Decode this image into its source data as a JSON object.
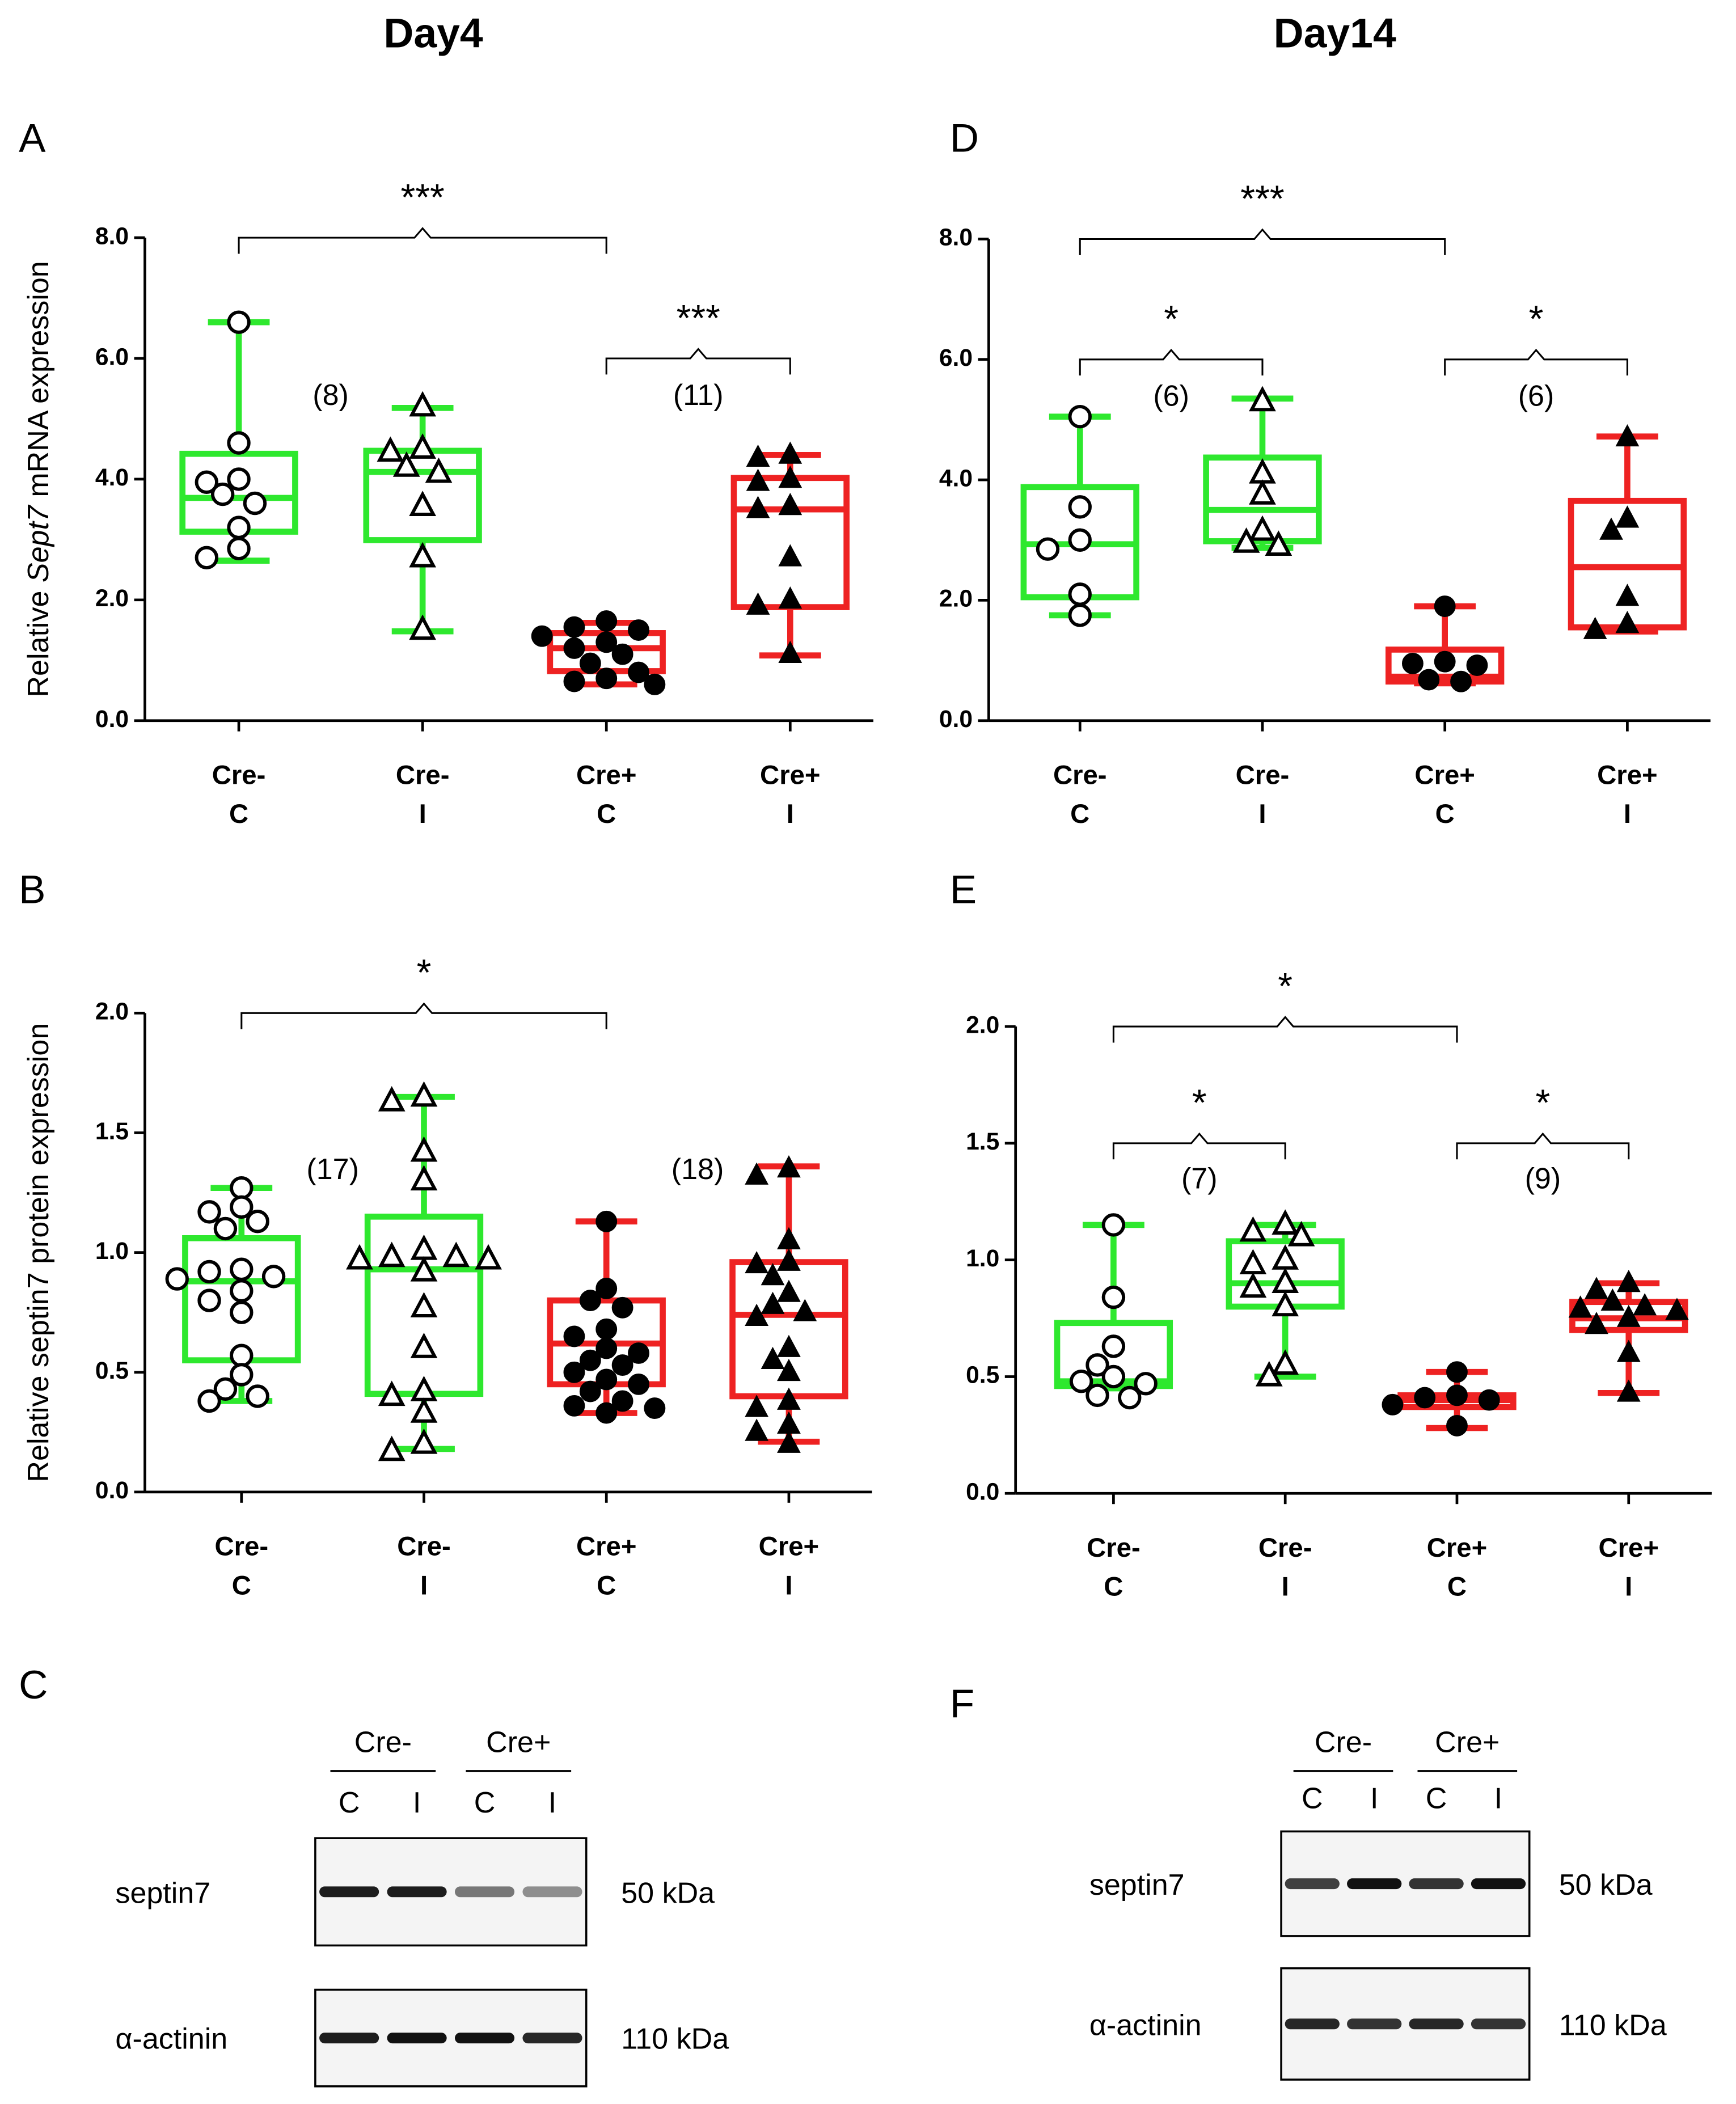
{
  "columns": [
    "Day4",
    "Day14"
  ],
  "chart_data": [
    {
      "type": "box",
      "panel": "A",
      "ylabel": [
        "Relative ",
        "Sept7",
        " mRNA expression"
      ],
      "categories": [
        [
          "Cre-",
          "C"
        ],
        [
          "Cre-",
          "I"
        ],
        [
          "Cre+",
          "C"
        ],
        [
          "Cre+",
          "I"
        ]
      ],
      "ylim": [
        0,
        8
      ],
      "yticks": [
        {
          "value": 0,
          "label": "0.0"
        },
        {
          "value": 2,
          "label": "2.0"
        },
        {
          "value": 4,
          "label": "4.0"
        },
        {
          "value": 6,
          "label": "6.0"
        },
        {
          "value": 8,
          "label": "8.0"
        }
      ],
      "boxes": [
        {
          "color": "#2ee82e",
          "marker": "circle-open",
          "min": 2.65,
          "q1": 3.13,
          "median": 3.69,
          "q3": 4.42,
          "max": 6.6,
          "points": [
            6.6,
            4.6,
            4.0,
            3.95,
            3.75,
            3.6,
            3.2,
            2.85,
            2.7
          ]
        },
        {
          "color": "#2ee82e",
          "marker": "triangle-open",
          "min": 1.48,
          "q1": 2.99,
          "median": 4.12,
          "q3": 4.47,
          "max": 5.18,
          "points": [
            5.2,
            4.5,
            4.45,
            4.2,
            4.1,
            3.55,
            2.7,
            1.5
          ]
        },
        {
          "color": "#ee2222",
          "marker": "circle",
          "min": 0.6,
          "q1": 0.82,
          "median": 1.2,
          "q3": 1.45,
          "max": 1.62,
          "points": [
            1.65,
            1.55,
            1.5,
            1.4,
            1.3,
            1.2,
            1.1,
            0.95,
            0.8,
            0.7,
            0.65,
            0.6
          ]
        },
        {
          "color": "#ee2222",
          "marker": "triangle",
          "min": 1.08,
          "q1": 1.88,
          "median": 3.5,
          "q3": 4.02,
          "max": 4.4,
          "points": [
            4.4,
            4.35,
            4.0,
            3.95,
            3.55,
            3.5,
            2.7,
            2.0,
            1.9,
            1.1
          ]
        }
      ],
      "brackets": [
        {
          "from": 0,
          "to": 2,
          "label": "***"
        },
        {
          "from": 2,
          "to": 3,
          "label": "***"
        }
      ],
      "n_labels": [
        {
          "from": 0,
          "to": 1,
          "label": "(8)"
        },
        {
          "from": 2,
          "to": 3,
          "label": "(11)"
        }
      ]
    },
    {
      "type": "box",
      "panel": "D",
      "categories": [
        [
          "Cre-",
          "C"
        ],
        [
          "Cre-",
          "I"
        ],
        [
          "Cre+",
          "C"
        ],
        [
          "Cre+",
          "I"
        ]
      ],
      "ylim": [
        0,
        8
      ],
      "yticks": [
        {
          "value": 0,
          "label": "0.0"
        },
        {
          "value": 2,
          "label": "2.0"
        },
        {
          "value": 4,
          "label": "4.0"
        },
        {
          "value": 6,
          "label": "6.0"
        },
        {
          "value": 8,
          "label": "8.0"
        }
      ],
      "boxes": [
        {
          "color": "#2ee82e",
          "marker": "circle-open",
          "min": 1.75,
          "q1": 2.05,
          "median": 2.93,
          "q3": 3.88,
          "max": 5.05,
          "points": [
            5.05,
            3.55,
            3.0,
            2.85,
            2.1,
            1.75
          ]
        },
        {
          "color": "#2ee82e",
          "marker": "triangle-open",
          "min": 2.87,
          "q1": 2.98,
          "median": 3.5,
          "q3": 4.37,
          "max": 5.35,
          "points": [
            5.3,
            4.1,
            3.75,
            3.15,
            2.95,
            2.9
          ]
        },
        {
          "color": "#ee2222",
          "marker": "circle",
          "min": 0.62,
          "q1": 0.65,
          "median": 0.73,
          "q3": 1.18,
          "max": 1.9,
          "points": [
            1.9,
            0.98,
            0.95,
            0.92,
            0.68,
            0.65
          ]
        },
        {
          "color": "#ee2222",
          "marker": "triangle",
          "min": 1.48,
          "q1": 1.55,
          "median": 2.55,
          "q3": 3.65,
          "max": 4.72,
          "points": [
            4.7,
            3.35,
            3.15,
            2.05,
            1.6,
            1.5
          ]
        }
      ],
      "brackets": [
        {
          "from": 0,
          "to": 2,
          "label": "***"
        },
        {
          "from": 0,
          "to": 1,
          "label": "*"
        },
        {
          "from": 2,
          "to": 3,
          "label": "*"
        }
      ],
      "n_labels": [
        {
          "from": 0,
          "to": 1,
          "label": "(6)"
        },
        {
          "from": 2,
          "to": 3,
          "label": "(6)"
        }
      ]
    },
    {
      "type": "box",
      "panel": "B",
      "ylabel": [
        "Relative septin7 protein expression"
      ],
      "categories": [
        [
          "Cre-",
          "C"
        ],
        [
          "Cre-",
          "I"
        ],
        [
          "Cre+",
          "C"
        ],
        [
          "Cre+",
          "I"
        ]
      ],
      "ylim": [
        0,
        2
      ],
      "yticks": [
        {
          "value": 0,
          "label": "0.0"
        },
        {
          "value": 0.5,
          "label": "0.5"
        },
        {
          "value": 1,
          "label": "1.0"
        },
        {
          "value": 1.5,
          "label": "1.5"
        },
        {
          "value": 2,
          "label": "2.0"
        }
      ],
      "boxes": [
        {
          "color": "#2ee82e",
          "marker": "circle-open",
          "min": 0.38,
          "q1": 0.55,
          "median": 0.88,
          "q3": 1.06,
          "max": 1.27,
          "points": [
            1.27,
            1.19,
            1.17,
            1.13,
            1.1,
            0.93,
            0.92,
            0.9,
            0.89,
            0.84,
            0.8,
            0.75,
            0.57,
            0.49,
            0.43,
            0.4,
            0.38
          ]
        },
        {
          "color": "#2ee82e",
          "marker": "triangle-open",
          "min": 0.18,
          "q1": 0.41,
          "median": 0.93,
          "q3": 1.15,
          "max": 1.65,
          "points": [
            1.65,
            1.63,
            1.42,
            1.3,
            1.01,
            0.98,
            0.98,
            0.97,
            0.97,
            0.92,
            0.77,
            0.6,
            0.42,
            0.4,
            0.33,
            0.2,
            0.17
          ]
        },
        {
          "color": "#ee2222",
          "marker": "circle",
          "min": 0.33,
          "q1": 0.45,
          "median": 0.62,
          "q3": 0.8,
          "max": 1.13,
          "points": [
            1.13,
            0.85,
            0.8,
            0.77,
            0.68,
            0.65,
            0.6,
            0.58,
            0.55,
            0.53,
            0.5,
            0.47,
            0.45,
            0.42,
            0.38,
            0.36,
            0.35,
            0.33
          ]
        },
        {
          "color": "#ee2222",
          "marker": "triangle",
          "min": 0.21,
          "q1": 0.4,
          "median": 0.74,
          "q3": 0.96,
          "max": 1.36,
          "points": [
            1.35,
            1.32,
            1.05,
            0.96,
            0.95,
            0.9,
            0.83,
            0.78,
            0.75,
            0.73,
            0.6,
            0.55,
            0.5,
            0.38,
            0.35,
            0.28,
            0.25,
            0.2
          ]
        }
      ],
      "brackets": [
        {
          "from": 0,
          "to": 2,
          "label": "*"
        }
      ],
      "n_labels": [
        {
          "from": 0,
          "to": 1,
          "label": "(17)"
        },
        {
          "from": 2,
          "to": 3,
          "label": "(18)"
        }
      ]
    },
    {
      "type": "box",
      "panel": "E",
      "categories": [
        [
          "Cre-",
          "C"
        ],
        [
          "Cre-",
          "I"
        ],
        [
          "Cre+",
          "C"
        ],
        [
          "Cre+",
          "I"
        ]
      ],
      "ylim": [
        0,
        2
      ],
      "yticks": [
        {
          "value": 0,
          "label": "0.0"
        },
        {
          "value": 0.5,
          "label": "0.5"
        },
        {
          "value": 1,
          "label": "1.0"
        },
        {
          "value": 1.5,
          "label": "1.5"
        },
        {
          "value": 2,
          "label": "2.0"
        }
      ],
      "boxes": [
        {
          "color": "#2ee82e",
          "marker": "circle-open",
          "min": 0.45,
          "q1": 0.46,
          "median": 0.48,
          "q3": 0.73,
          "max": 1.15,
          "points": [
            1.15,
            0.84,
            0.63,
            0.55,
            0.5,
            0.48,
            0.47,
            0.42,
            0.41
          ]
        },
        {
          "color": "#2ee82e",
          "marker": "triangle-open",
          "min": 0.5,
          "q1": 0.8,
          "median": 0.9,
          "q3": 1.08,
          "max": 1.15,
          "points": [
            1.15,
            1.12,
            1.1,
            1.0,
            0.98,
            0.9,
            0.88,
            0.8,
            0.55,
            0.5
          ]
        },
        {
          "color": "#ee2222",
          "marker": "circle",
          "min": 0.28,
          "q1": 0.37,
          "median": 0.4,
          "q3": 0.42,
          "max": 0.52,
          "points": [
            0.52,
            0.42,
            0.41,
            0.4,
            0.38,
            0.29
          ]
        },
        {
          "color": "#ee2222",
          "marker": "triangle",
          "min": 0.43,
          "q1": 0.7,
          "median": 0.75,
          "q3": 0.82,
          "max": 0.9,
          "points": [
            0.9,
            0.87,
            0.82,
            0.8,
            0.79,
            0.78,
            0.75,
            0.72,
            0.6,
            0.43
          ]
        }
      ],
      "brackets": [
        {
          "from": 0,
          "to": 2,
          "label": "*"
        },
        {
          "from": 0,
          "to": 1,
          "label": "*"
        },
        {
          "from": 2,
          "to": 3,
          "label": "*"
        }
      ],
      "n_labels": [
        {
          "from": 0,
          "to": 1,
          "label": "(7)"
        },
        {
          "from": 2,
          "to": 3,
          "label": "(9)"
        }
      ]
    }
  ],
  "blots": [
    {
      "panel": "C",
      "groups": [
        "Cre-",
        "Cre+"
      ],
      "lanes": [
        "C",
        "I",
        "C",
        "I"
      ],
      "rows": [
        {
          "protein": "septin7",
          "size": "50 kDa"
        },
        {
          "protein": "α-actinin",
          "size": "110 kDa"
        }
      ]
    },
    {
      "panel": "F",
      "groups": [
        "Cre-",
        "Cre+"
      ],
      "lanes": [
        "C",
        "I",
        "C",
        "I"
      ],
      "rows": [
        {
          "protein": "septin7",
          "size": "50 kDa"
        },
        {
          "protein": "α-actinin",
          "size": "110 kDa"
        }
      ]
    }
  ]
}
